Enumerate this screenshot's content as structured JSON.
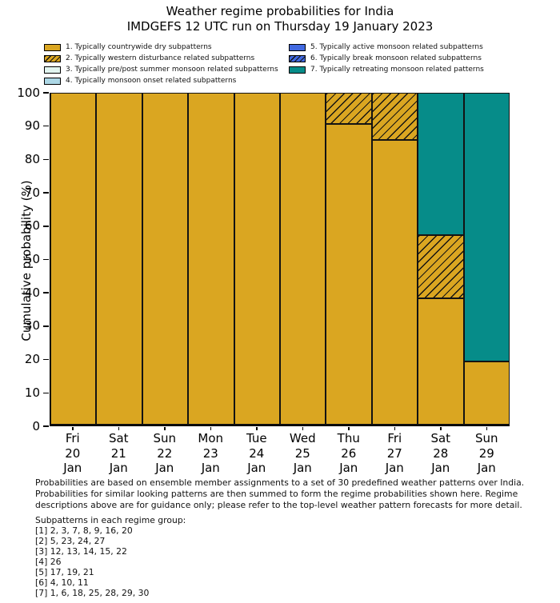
{
  "title": {
    "line1": "Weather regime probabilities for India",
    "line2": "IMDGEFS 12 UTC run on Thursday 19 January 2023"
  },
  "legend": {
    "items": [
      {
        "label": "1. Typically countrywide dry subpatterns",
        "color": "#DAA621",
        "hatch": false
      },
      {
        "label": "2. Typically western disturbance related subpatterns",
        "color": "#DAA621",
        "hatch": true
      },
      {
        "label": "3. Typically pre/post summer monsoon related subpatterns",
        "color": "#E2F5F0",
        "hatch": false
      },
      {
        "label": "4. Typically monsoon onset related subpatterns",
        "color": "#ADD8E6",
        "hatch": false
      },
      {
        "label": "5. Typically active monsoon related subpatterns",
        "color": "#4169E1",
        "hatch": false
      },
      {
        "label": "6. Typically break monsoon related subpatterns",
        "color": "#4169E1",
        "hatch": true
      },
      {
        "label": "7. Typically retreating monsoon related patterns",
        "color": "#068C89",
        "hatch": false
      }
    ]
  },
  "y_axis": {
    "label": "Cumulative probability (%)",
    "ticks": [
      0,
      10,
      20,
      30,
      40,
      50,
      60,
      70,
      80,
      90,
      100
    ]
  },
  "x_axis": {
    "labels": [
      {
        "day": "Fri",
        "date": "20",
        "month": "Jan"
      },
      {
        "day": "Sat",
        "date": "21",
        "month": "Jan"
      },
      {
        "day": "Sun",
        "date": "22",
        "month": "Jan"
      },
      {
        "day": "Mon",
        "date": "23",
        "month": "Jan"
      },
      {
        "day": "Tue",
        "date": "24",
        "month": "Jan"
      },
      {
        "day": "Wed",
        "date": "25",
        "month": "Jan"
      },
      {
        "day": "Thu",
        "date": "26",
        "month": "Jan"
      },
      {
        "day": "Fri",
        "date": "27",
        "month": "Jan"
      },
      {
        "day": "Sat",
        "date": "28",
        "month": "Jan"
      },
      {
        "day": "Sun",
        "date": "29",
        "month": "Jan"
      }
    ]
  },
  "chart_data": {
    "type": "bar",
    "stacked": true,
    "title": "Weather regime probabilities for India",
    "subtitle": "IMDGEFS 12 UTC run on Thursday 19 January 2023",
    "xlabel": "",
    "ylabel": "Cumulative probability (%)",
    "ylim": [
      0,
      100
    ],
    "grid": false,
    "legend_position": "top",
    "categories": [
      "Fri 20 Jan",
      "Sat 21 Jan",
      "Sun 22 Jan",
      "Mon 23 Jan",
      "Tue 24 Jan",
      "Wed 25 Jan",
      "Thu 26 Jan",
      "Fri 27 Jan",
      "Sat 28 Jan",
      "Sun 29 Jan"
    ],
    "series": [
      {
        "name": "1. Typically countrywide dry subpatterns",
        "color": "#DAA621",
        "hatch": false,
        "values": [
          100,
          100,
          100,
          100,
          100,
          100,
          90.5,
          85.7,
          38.1,
          19.0
        ]
      },
      {
        "name": "2. Typically western disturbance related subpatterns",
        "color": "#DAA621",
        "hatch": true,
        "values": [
          0,
          0,
          0,
          0,
          0,
          0,
          9.5,
          14.3,
          19.0,
          0
        ]
      },
      {
        "name": "3. Typically pre/post summer monsoon related subpatterns",
        "color": "#E2F5F0",
        "hatch": false,
        "values": [
          0,
          0,
          0,
          0,
          0,
          0,
          0,
          0,
          0,
          0
        ]
      },
      {
        "name": "4. Typically monsoon onset related subpatterns",
        "color": "#ADD8E6",
        "hatch": false,
        "values": [
          0,
          0,
          0,
          0,
          0,
          0,
          0,
          0,
          0,
          0
        ]
      },
      {
        "name": "5. Typically active monsoon related subpatterns",
        "color": "#4169E1",
        "hatch": false,
        "values": [
          0,
          0,
          0,
          0,
          0,
          0,
          0,
          0,
          0,
          0
        ]
      },
      {
        "name": "6. Typically break monsoon related subpatterns",
        "color": "#4169E1",
        "hatch": true,
        "values": [
          0,
          0,
          0,
          0,
          0,
          0,
          0,
          0,
          0,
          0
        ]
      },
      {
        "name": "7. Typically retreating monsoon related patterns",
        "color": "#068C89",
        "hatch": false,
        "values": [
          0,
          0,
          0,
          0,
          0,
          0,
          0,
          0,
          42.9,
          81.0
        ]
      }
    ]
  },
  "footer": {
    "line1": "Probabilities are based on ensemble member assignments to a set of 30 predefined weather patterns over India.",
    "line2": "Probabilities for similar looking patterns are then summed to form the regime probabilities shown here. Regime",
    "line3": "descriptions above are for guidance only; please refer to the top-level weather pattern forecasts for more detail.",
    "subpatterns_title": "Subpatterns in each regime group:",
    "subpattern_lines": [
      "[1] 2, 3, 7, 8, 9, 16, 20",
      "[2] 5, 23, 24, 27",
      "[3] 12, 13, 14, 15, 22",
      "[4] 26",
      "[5] 17, 19, 21",
      "[6] 4, 10, 11",
      "[7] 1, 6, 18, 25, 28, 29, 30"
    ]
  },
  "colors": {
    "regime_dry": "#DAA621",
    "regime_retreating": "#068C89",
    "regime_active": "#4169E1",
    "regime_prepost": "#E2F5F0",
    "regime_onset": "#ADD8E6",
    "axis": "#000000",
    "background": "#ffffff"
  }
}
